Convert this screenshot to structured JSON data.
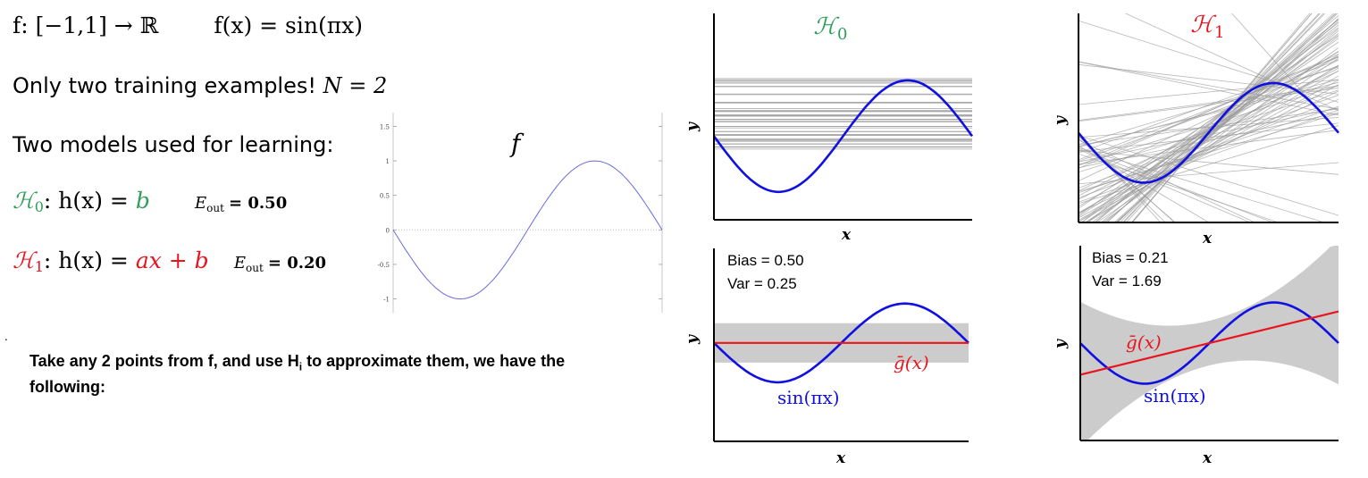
{
  "slide": {
    "target_function": {
      "domain": "f: [−1,1] → ℝ",
      "definition": "f(x) = sin(πx)"
    },
    "training_examples": {
      "text": "Only two training examples! ",
      "math": "N = 2"
    },
    "models_heading": "Two models used for learning:",
    "models": [
      {
        "symbol": "ℋ",
        "sub": "0",
        "formula": ": h(x) = ",
        "rhs": "b",
        "eout_label": "E",
        "eout_sub": "out",
        "eout_value": "= 0.50",
        "color": "#2e9e5b"
      },
      {
        "symbol": "ℋ",
        "sub": "1",
        "formula": ": h(x) = ",
        "rhs": "ax + b",
        "eout_label": "E",
        "eout_sub": "out",
        "eout_value": "= 0.20",
        "color": "#e8141e"
      }
    ],
    "note": {
      "line1_pre": "Take any 2 points from f, and use H",
      "line1_sub": "i",
      "line1_post": " to approximate them, we have the",
      "line2": "following:"
    },
    "bullet_dot": "."
  },
  "chart_data": [
    {
      "type": "line",
      "title": "f",
      "x_range": [
        -1,
        1
      ],
      "ylim": [
        -1.2,
        1.7
      ],
      "yticks": [
        1.5,
        1,
        0.5,
        0,
        -0.5,
        -1
      ],
      "ytick_labels": [
        "1.5",
        "1",
        "0.5",
        "0",
        "-0.5",
        "-1"
      ],
      "series": [
        {
          "function": "sin(pi*x)",
          "color": "#6b6bdc"
        }
      ],
      "zero_line": "dotted"
    },
    {
      "type": "line",
      "title": "ℋ",
      "title_sub": "0",
      "title_color": "#2e9e5b",
      "xlabel": "x",
      "ylabel": "y",
      "x_range": [
        -1,
        1
      ],
      "ylim": [
        -1.5,
        2.2
      ],
      "sine_color": "#1010e0",
      "hypotheses": "constant lines h(x)=b, b between -0.3 and 1.05",
      "hypothesis_color": "#999999"
    },
    {
      "type": "line",
      "title": "ℋ",
      "title_sub": "1",
      "title_color": "#e8141e",
      "xlabel": "x",
      "ylabel": "y",
      "x_range": [
        -1,
        1
      ],
      "ylim": [
        -1.8,
        2.4
      ],
      "sine_color": "#1010e0",
      "hypotheses": "lines h(x)=ax+b through 2 sample points",
      "hypothesis_color": "#999999"
    },
    {
      "type": "area",
      "xlabel": "x",
      "ylabel": "y",
      "x_range": [
        -1,
        1
      ],
      "ylim": [
        -2.5,
        2.4
      ],
      "annotations": {
        "bias": "Bias = 0.50",
        "var": "Var = 0.25",
        "gbar": "ḡ(x)",
        "sine": "sin(πx)"
      },
      "gbar": {
        "slope": 0,
        "intercept": 0,
        "color": "#e8141e"
      },
      "band_halfwidth": 0.5,
      "sine_color": "#1010e0",
      "band_color": "#cccccc"
    },
    {
      "type": "area",
      "xlabel": "x",
      "ylabel": "y",
      "x_range": [
        -1,
        1
      ],
      "ylim": [
        -2.4,
        2.4
      ],
      "annotations": {
        "bias": "Bias = 0.21",
        "var": "Var = 1.69",
        "gbar": "ḡ(x)",
        "sine": "sin(πx)"
      },
      "gbar": {
        "slope": 0.78,
        "intercept": 0,
        "color": "#e8141e"
      },
      "band": "std grows toward edges",
      "sine_color": "#1010e0",
      "band_color": "#cccccc"
    }
  ]
}
